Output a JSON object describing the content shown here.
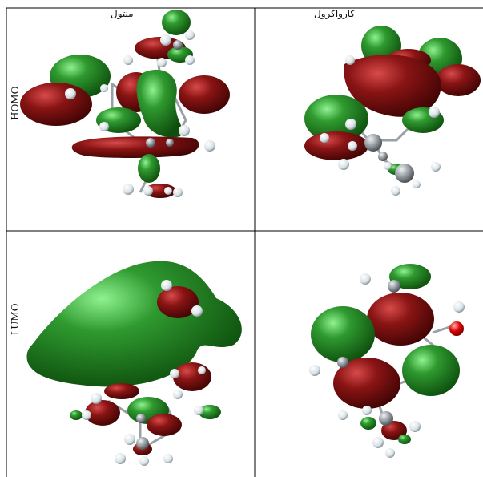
{
  "figure": {
    "columns": [
      {
        "label": "منتول"
      },
      {
        "label": "کارواکرول"
      }
    ],
    "rows": [
      {
        "label": "HOMO"
      },
      {
        "label": "LUMO"
      }
    ],
    "colors": {
      "positive_lobe": "#1e7a1e",
      "negative_lobe": "#7a1010",
      "carbon_atom": "#8d949a",
      "hydrogen_atom": "#e8eef0",
      "oxygen_atom": "#e00000",
      "bond": "#9aa0a4",
      "grid_line": "#000000"
    }
  }
}
